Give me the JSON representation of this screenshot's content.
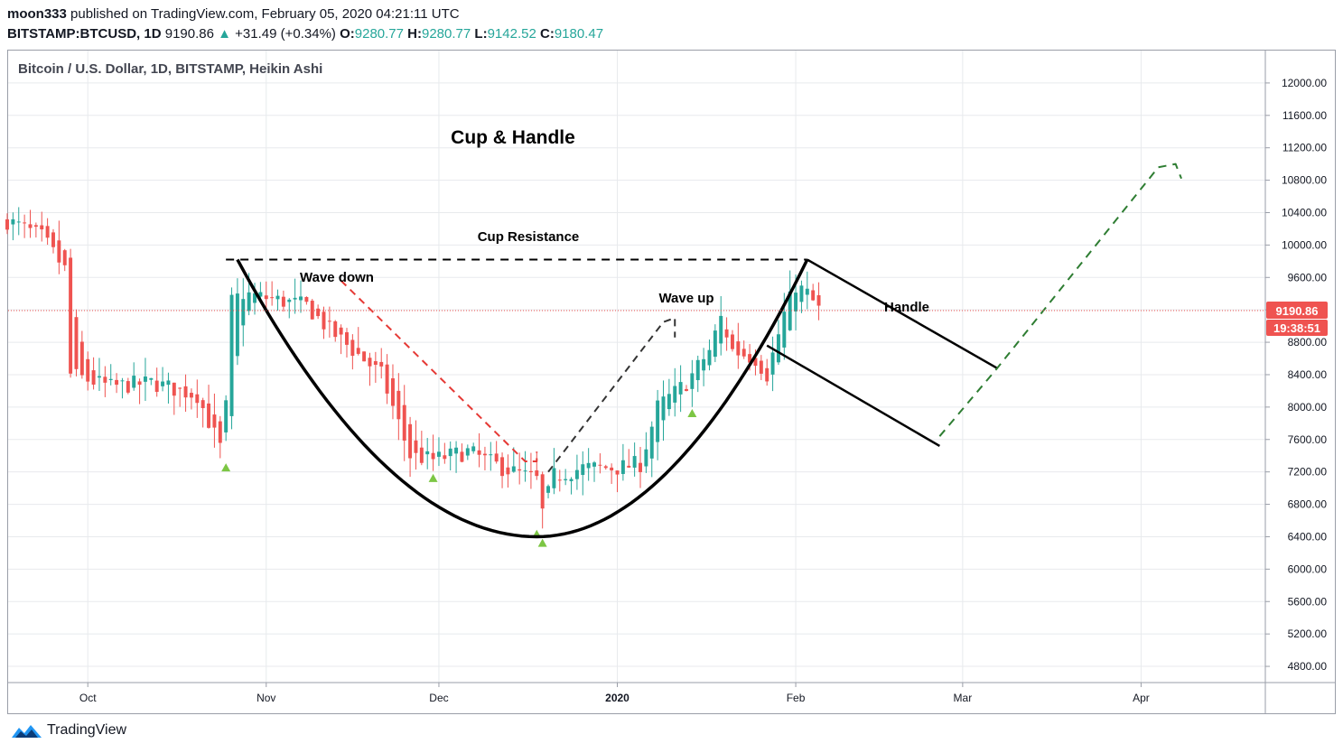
{
  "header": {
    "author": "moon333",
    "published_text": "published on TradingView.com, February 05, 2020 04:21:11 UTC",
    "symbol": "BITSTAMP:BTCUSD, 1D",
    "price": "9190.86",
    "change_arrow": "▲",
    "change": "+31.49 (+0.34%)",
    "o_label": "O:",
    "o_value": "9280.77",
    "h_label": "H:",
    "h_value": "9280.77",
    "l_label": "L:",
    "l_value": "9142.52",
    "c_label": "C:",
    "c_value": "9180.47"
  },
  "footer": {
    "brand": "TradingView"
  },
  "chart_data": {
    "type": "candlestick",
    "title": "Bitcoin / U.S. Dollar, 1D, BITSTAMP, Heikin Ashi",
    "chart_style": "Heikin Ashi",
    "ylim": [
      4600,
      12400
    ],
    "y_ticks": [
      12000,
      11600,
      11200,
      10800,
      10400,
      10000,
      9600,
      9200,
      8800,
      8400,
      8000,
      7600,
      7200,
      6800,
      6400,
      6000,
      5600,
      5200,
      4800
    ],
    "y_tick_labels": [
      "12000.00",
      "11600.00",
      "11200.00",
      "10800.00",
      "10400.00",
      "10000.00",
      "9600.00",
      "9200.00",
      "8800.00",
      "8400.00",
      "8000.00",
      "7600.00",
      "7200.00",
      "6800.00",
      "6400.00",
      "6000.00",
      "5600.00",
      "5200.00",
      "4800.00"
    ],
    "x_start_date": "2019-09-17",
    "x_end_date": "2020-04-24",
    "x_ticks": [
      {
        "label": "Oct",
        "day": 14
      },
      {
        "label": "Nov",
        "day": 45
      },
      {
        "label": "Dec",
        "day": 75
      },
      {
        "label": "2020",
        "day": 106
      },
      {
        "label": "Feb",
        "day": 137
      },
      {
        "label": "Mar",
        "day": 166
      },
      {
        "label": "Apr",
        "day": 197
      }
    ],
    "last_price": 9190.86,
    "last_price_label": "9190.86",
    "countdown_label": "19:38:51",
    "colors": {
      "up": "#26a69a",
      "down": "#ef5350",
      "grid": "#e8eaed",
      "axis_text": "#131722",
      "price_tag": "#ef5350",
      "price_line": "#ef5350",
      "signal": "#7cc644"
    },
    "anchors": [
      [
        0,
        10300
      ],
      [
        6,
        10100
      ],
      [
        10,
        9700
      ],
      [
        11,
        8400
      ],
      [
        18,
        8250
      ],
      [
        25,
        8300
      ],
      [
        33,
        8150
      ],
      [
        37,
        7500
      ],
      [
        38,
        8000
      ],
      [
        39,
        9300
      ],
      [
        41,
        9400
      ],
      [
        52,
        9250
      ],
      [
        56,
        8950
      ],
      [
        65,
        8400
      ],
      [
        70,
        7400
      ],
      [
        74,
        7350
      ],
      [
        80,
        7450
      ],
      [
        86,
        7250
      ],
      [
        92,
        7100
      ],
      [
        93,
        6700
      ],
      [
        95,
        7150
      ],
      [
        100,
        7250
      ],
      [
        106,
        7250
      ],
      [
        110,
        7300
      ],
      [
        113,
        8000
      ],
      [
        118,
        8300
      ],
      [
        122,
        8700
      ],
      [
        124,
        9100
      ],
      [
        126,
        8700
      ],
      [
        130,
        8600
      ],
      [
        132,
        8400
      ],
      [
        135,
        9150
      ],
      [
        137,
        9500
      ],
      [
        139,
        9400
      ],
      [
        141,
        9200
      ]
    ],
    "signals": [
      {
        "day": 38,
        "price": 7250
      },
      {
        "day": 74,
        "price": 7120
      },
      {
        "day": 92,
        "price": 6430
      },
      {
        "day": 93,
        "price": 6320
      },
      {
        "day": 119,
        "price": 7920
      }
    ],
    "annotations": [
      {
        "text": "Cup & Handle"
      },
      {
        "text": "Cup Resistance"
      },
      {
        "text": "Wave down"
      },
      {
        "text": "Wave up"
      },
      {
        "text": "Handle"
      }
    ],
    "drawings": {
      "cup_resistance": {
        "style": "dashed",
        "color": "#000000",
        "points": [
          [
            38,
            9820
          ],
          [
            139,
            9820
          ]
        ]
      },
      "cup_curve": {
        "style": "solid",
        "color": "#000000",
        "points": [
          [
            40,
            9820
          ],
          [
            92,
            6400
          ],
          [
            139,
            9820
          ]
        ]
      },
      "wave_down": {
        "style": "dashed",
        "color": "#e53935",
        "points": [
          [
            58,
            9560
          ],
          [
            90,
            7330
          ],
          [
            92,
            7330
          ],
          [
            92,
            7450
          ]
        ]
      },
      "wave_up": {
        "style": "dashed",
        "color": "#333333",
        "points": [
          [
            94,
            7200
          ],
          [
            114,
            9050
          ],
          [
            116,
            9100
          ],
          [
            116,
            8860
          ]
        ]
      },
      "handle_upper": {
        "style": "solid",
        "color": "#000000",
        "points": [
          [
            139,
            9820
          ],
          [
            172,
            8480
          ]
        ]
      },
      "handle_lower": {
        "style": "solid",
        "color": "#000000",
        "points": [
          [
            132,
            8760
          ],
          [
            162,
            7520
          ]
        ]
      },
      "projection": {
        "style": "dashed",
        "color": "#2e7d32",
        "points": [
          [
            162,
            7640
          ],
          [
            172,
            8480
          ],
          [
            200,
            10960
          ],
          [
            203,
            11000
          ],
          [
            204,
            10820
          ]
        ]
      }
    }
  }
}
